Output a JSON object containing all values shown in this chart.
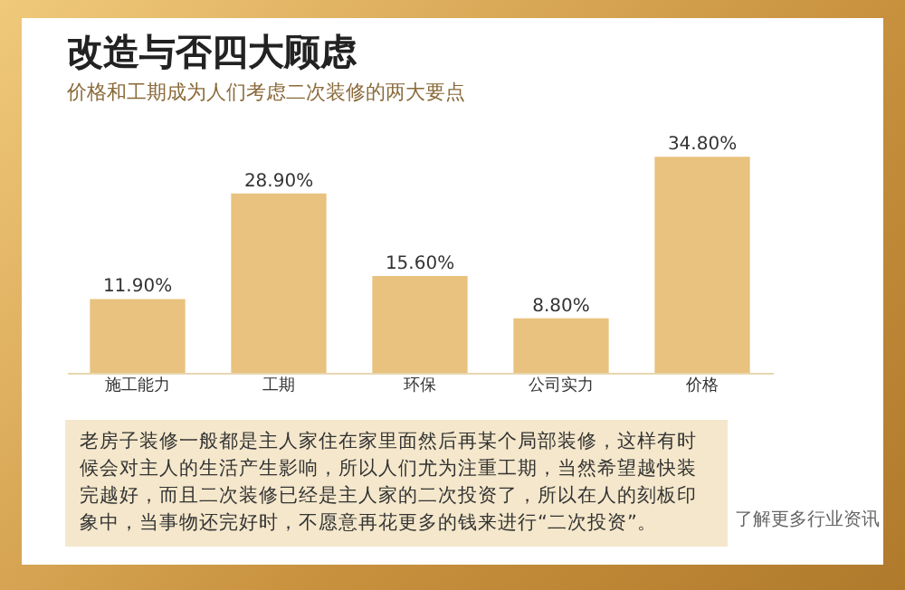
{
  "chart_data": {
    "type": "bar",
    "title": "改造与否四大顾虑",
    "subtitle": "价格和工期成为人们考虑二次装修的两大要点",
    "categories": [
      "施工能力",
      "工期",
      "环保",
      "公司实力",
      "价格"
    ],
    "values": [
      11.9,
      28.9,
      15.6,
      8.8,
      34.8
    ],
    "value_labels": [
      "11.90%",
      "28.90%",
      "15.60%",
      "8.80%",
      "34.80%"
    ],
    "color": "#e8c27e",
    "annotations": [
      "老房子装修一般都是主人家住在家里面然后再某个局部装修，这样有时候会对主人的生活产生影响，所以人们尤为注重工期，当然希望越快装完越好，而且二次装修已经是主人家的二次投资了，所以在人的刻板印象中，当事物还完好时，不愿意再花更多的钱来进行“二次投资”。",
      "了解更多行业资讯"
    ]
  }
}
